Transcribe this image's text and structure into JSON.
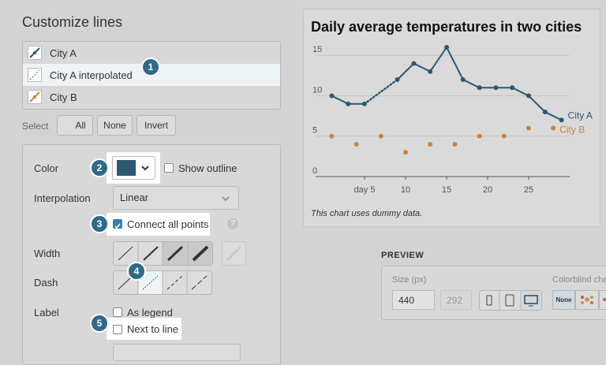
{
  "panel": {
    "title": "Customize lines",
    "lines": [
      "City A",
      "City A interpolated",
      "City B"
    ],
    "select": {
      "label": "Select",
      "buttons": [
        "All",
        "None",
        "Invert"
      ]
    },
    "form": {
      "color": "Color",
      "show_outline": "Show outline",
      "interpolation": "Interpolation",
      "interpolation_value": "Linear",
      "connect_all_points": "Connect all points",
      "help": "?",
      "width": "Width",
      "dash": "Dash",
      "label": "Label",
      "as_legend": "As legend",
      "next_to_line": "Next to line"
    }
  },
  "badges": [
    1,
    2,
    3,
    4,
    5
  ],
  "chart_data": {
    "type": "line",
    "title": "Daily average temperatures in two cities",
    "note": "This chart uses dummy data.",
    "xlim": [
      0,
      30
    ],
    "xticks": [
      {
        "value": 5,
        "label": "day 5"
      },
      10,
      15,
      20,
      25
    ],
    "ylim": [
      0,
      16
    ],
    "yticks": [
      0,
      5,
      10,
      15
    ],
    "connect_gaps": true,
    "series": [
      {
        "name": "City A",
        "color": "#2c5873",
        "x": [
          1,
          3,
          5,
          7,
          9,
          11,
          13,
          15,
          17,
          19,
          21,
          23,
          25,
          27,
          29
        ],
        "values": [
          10,
          9,
          9,
          null,
          12,
          14,
          13,
          16,
          12,
          11,
          11,
          11,
          10,
          8,
          7
        ]
      },
      {
        "name": "City B",
        "color": "#c7843f",
        "x": [
          1,
          4,
          7,
          10,
          13,
          16,
          19,
          22,
          25,
          28
        ],
        "values": [
          5,
          4,
          5,
          3,
          4,
          4,
          5,
          5,
          6,
          6
        ]
      }
    ]
  },
  "preview": {
    "title": "PREVIEW",
    "size_label": "Size (px)",
    "width": 440,
    "height": 292,
    "colorblind": "Colorblind che",
    "colorblind_none": "None"
  }
}
